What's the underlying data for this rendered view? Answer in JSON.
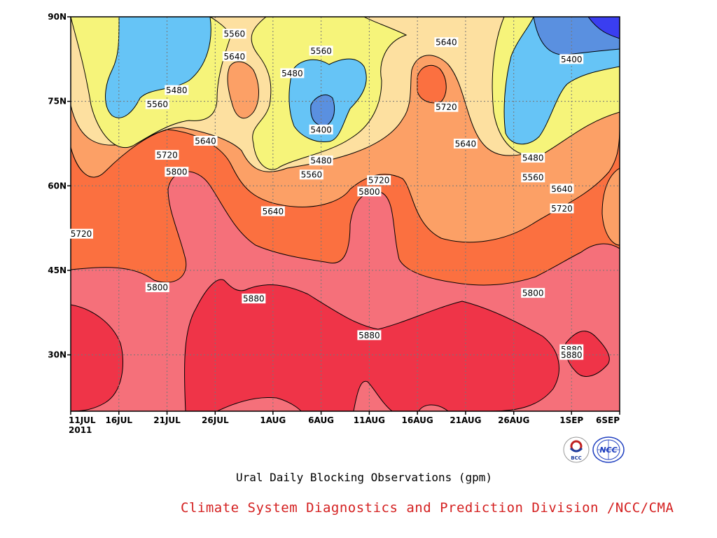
{
  "chart_data": {
    "type": "contour",
    "title": "Ural Daily Blocking Observations (gpm)",
    "y_ticks": [
      "90N",
      "75N",
      "60N",
      "45N",
      "30N"
    ],
    "y_values": [
      90,
      75,
      60,
      45,
      30
    ],
    "x_ticks": [
      "11JUL",
      "16JUL",
      "21JUL",
      "26JUL",
      "1AUG",
      "6AUG",
      "11AUG",
      "16AUG",
      "21AUG",
      "26AUG",
      "1SEP",
      "6SEP"
    ],
    "x_tick_dates": [
      "2011-07-11",
      "2011-07-16",
      "2011-07-21",
      "2011-07-26",
      "2011-08-01",
      "2011-08-06",
      "2011-08-11",
      "2011-08-16",
      "2011-08-21",
      "2011-08-26",
      "2011-09-01",
      "2011-09-06"
    ],
    "year_label": "2011",
    "xlim": [
      "2011-07-11",
      "2011-09-06"
    ],
    "ylim": [
      20,
      90
    ],
    "grid": true,
    "contour_levels": [
      5400,
      5480,
      5560,
      5640,
      5720,
      5800,
      5880
    ],
    "fill_colors": {
      "lt5320": "#3a3ef0",
      "5320-5400": "#5a90e0",
      "5400-5480": "#66c4f6",
      "5480-5560": "#f6f47a",
      "5560-5640": "#fde0a0",
      "5640-5720": "#fca066",
      "5720-5800": "#fb7040",
      "5800-5880": "#f5707a",
      "gt5880": "#ef3448"
    },
    "contour_labels": [
      {
        "text": "5560",
        "date": "2011-07-28",
        "lat": 87.0
      },
      {
        "text": "5640",
        "date": "2011-07-28",
        "lat": 83.0
      },
      {
        "text": "5560",
        "date": "2011-08-06",
        "lat": 84.0
      },
      {
        "text": "5480",
        "date": "2011-08-03",
        "lat": 80.0
      },
      {
        "text": "5640",
        "date": "2011-08-19",
        "lat": 85.5
      },
      {
        "text": "5400",
        "date": "2011-09-01",
        "lat": 82.5
      },
      {
        "text": "5480",
        "date": "2011-07-22",
        "lat": 77.0
      },
      {
        "text": "5560",
        "date": "2011-07-20",
        "lat": 74.5
      },
      {
        "text": "5720",
        "date": "2011-08-19",
        "lat": 74.0
      },
      {
        "text": "5400",
        "date": "2011-08-06",
        "lat": 70.0
      },
      {
        "text": "5640",
        "date": "2011-07-25",
        "lat": 68.0
      },
      {
        "text": "5640",
        "date": "2011-08-21",
        "lat": 67.5
      },
      {
        "text": "5720",
        "date": "2011-07-21",
        "lat": 65.5
      },
      {
        "text": "5480",
        "date": "2011-08-06",
        "lat": 64.5
      },
      {
        "text": "5480",
        "date": "2011-08-28",
        "lat": 65.0
      },
      {
        "text": "5800",
        "date": "2011-07-22",
        "lat": 62.5
      },
      {
        "text": "5560",
        "date": "2011-08-05",
        "lat": 62.0
      },
      {
        "text": "5720",
        "date": "2011-08-12",
        "lat": 61.0
      },
      {
        "text": "5560",
        "date": "2011-08-28",
        "lat": 61.5
      },
      {
        "text": "5640",
        "date": "2011-08-31",
        "lat": 59.5
      },
      {
        "text": "5800",
        "date": "2011-08-11",
        "lat": 59.0
      },
      {
        "text": "5640",
        "date": "2011-08-01",
        "lat": 55.5
      },
      {
        "text": "5720",
        "date": "2011-08-31",
        "lat": 56.0
      },
      {
        "text": "5720",
        "date": "2011-07-11",
        "lat": 51.5
      },
      {
        "text": "5800",
        "date": "2011-07-20",
        "lat": 42.0
      },
      {
        "text": "5800",
        "date": "2011-08-28",
        "lat": 41.0
      },
      {
        "text": "5880",
        "date": "2011-07-30",
        "lat": 40.0
      },
      {
        "text": "5880",
        "date": "2011-08-11",
        "lat": 33.5
      },
      {
        "text": "5880",
        "date": "2011-09-01",
        "lat": 31.0
      },
      {
        "text": "5880",
        "date": "2011-09-01",
        "lat": 30.0
      }
    ]
  },
  "footer": {
    "credit": "Climate System Diagnostics and Prediction Division /NCC/CMA",
    "logo_bcc_text": "BCC",
    "logo_ncc_text": "NCC"
  }
}
